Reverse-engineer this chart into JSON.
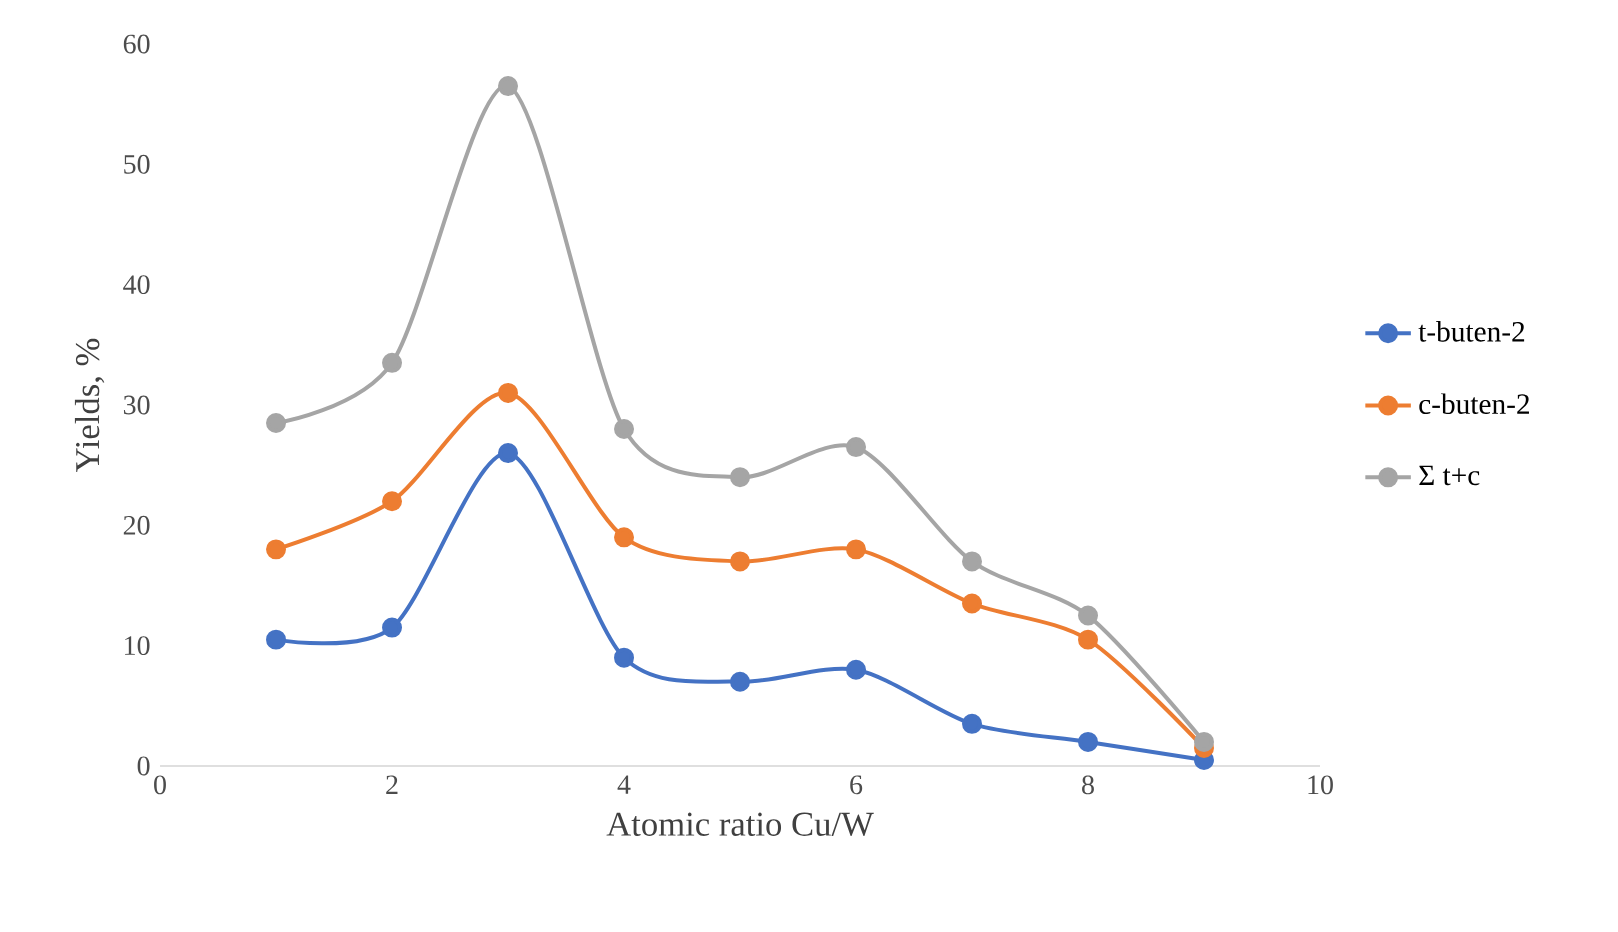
{
  "chart_data": {
    "type": "line",
    "xlabel": "Atomic ratio Cu/W",
    "ylabel": "Yields, %",
    "x": [
      1,
      2,
      3,
      4,
      5,
      6,
      7,
      8,
      9
    ],
    "series": [
      {
        "name": "t-buten-2",
        "color": "#4472c4",
        "values": [
          10.5,
          11.5,
          26,
          9,
          7,
          8,
          3.5,
          2,
          0.5
        ]
      },
      {
        "name": "c-buten-2",
        "color": "#ed7d31",
        "values": [
          18,
          22,
          31,
          19,
          17,
          18,
          13.5,
          10.5,
          1.5
        ]
      },
      {
        "name": "Σ t+c",
        "color": "#a5a5a5",
        "values": [
          28.5,
          33.5,
          56.5,
          28,
          24,
          26.5,
          17,
          12.5,
          2
        ]
      }
    ],
    "xlim": [
      0,
      10
    ],
    "ylim": [
      0,
      60
    ],
    "xticks": [
      0,
      2,
      4,
      6,
      8,
      10
    ],
    "yticks": [
      0,
      10,
      20,
      30,
      40,
      50,
      60
    ],
    "legend": "right",
    "marker": "circle"
  }
}
